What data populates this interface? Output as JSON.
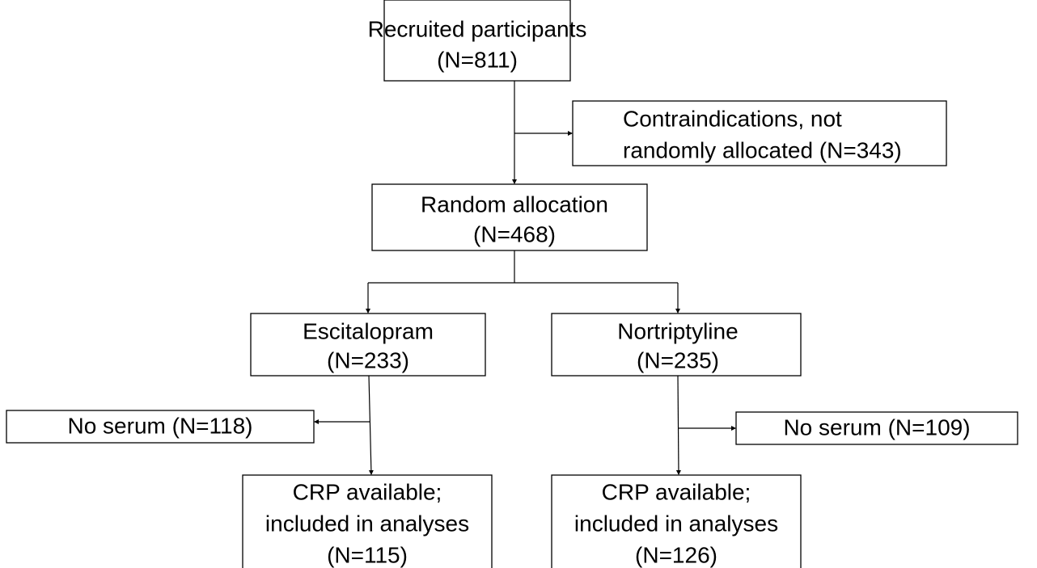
{
  "nodes": [
    {
      "lines": [
        "Recruited participants",
        "(N=811)"
      ]
    },
    {
      "lines": [
        "Contraindications, not",
        "randomly allocated (N=343)"
      ]
    },
    {
      "lines": [
        "Random allocation",
        "(N=468)"
      ]
    },
    {
      "lines": [
        "Escitalopram",
        "(N=233)"
      ]
    },
    {
      "lines": [
        "Nortriptyline",
        "(N=235)"
      ]
    },
    {
      "lines": [
        "No serum (N=118)"
      ]
    },
    {
      "lines": [
        "No serum (N=109)"
      ]
    },
    {
      "lines": [
        "CRP available;",
        "included in analyses",
        "(N=115)"
      ]
    },
    {
      "lines": [
        "CRP available;",
        "included in analyses",
        "(N=126)"
      ]
    }
  ]
}
